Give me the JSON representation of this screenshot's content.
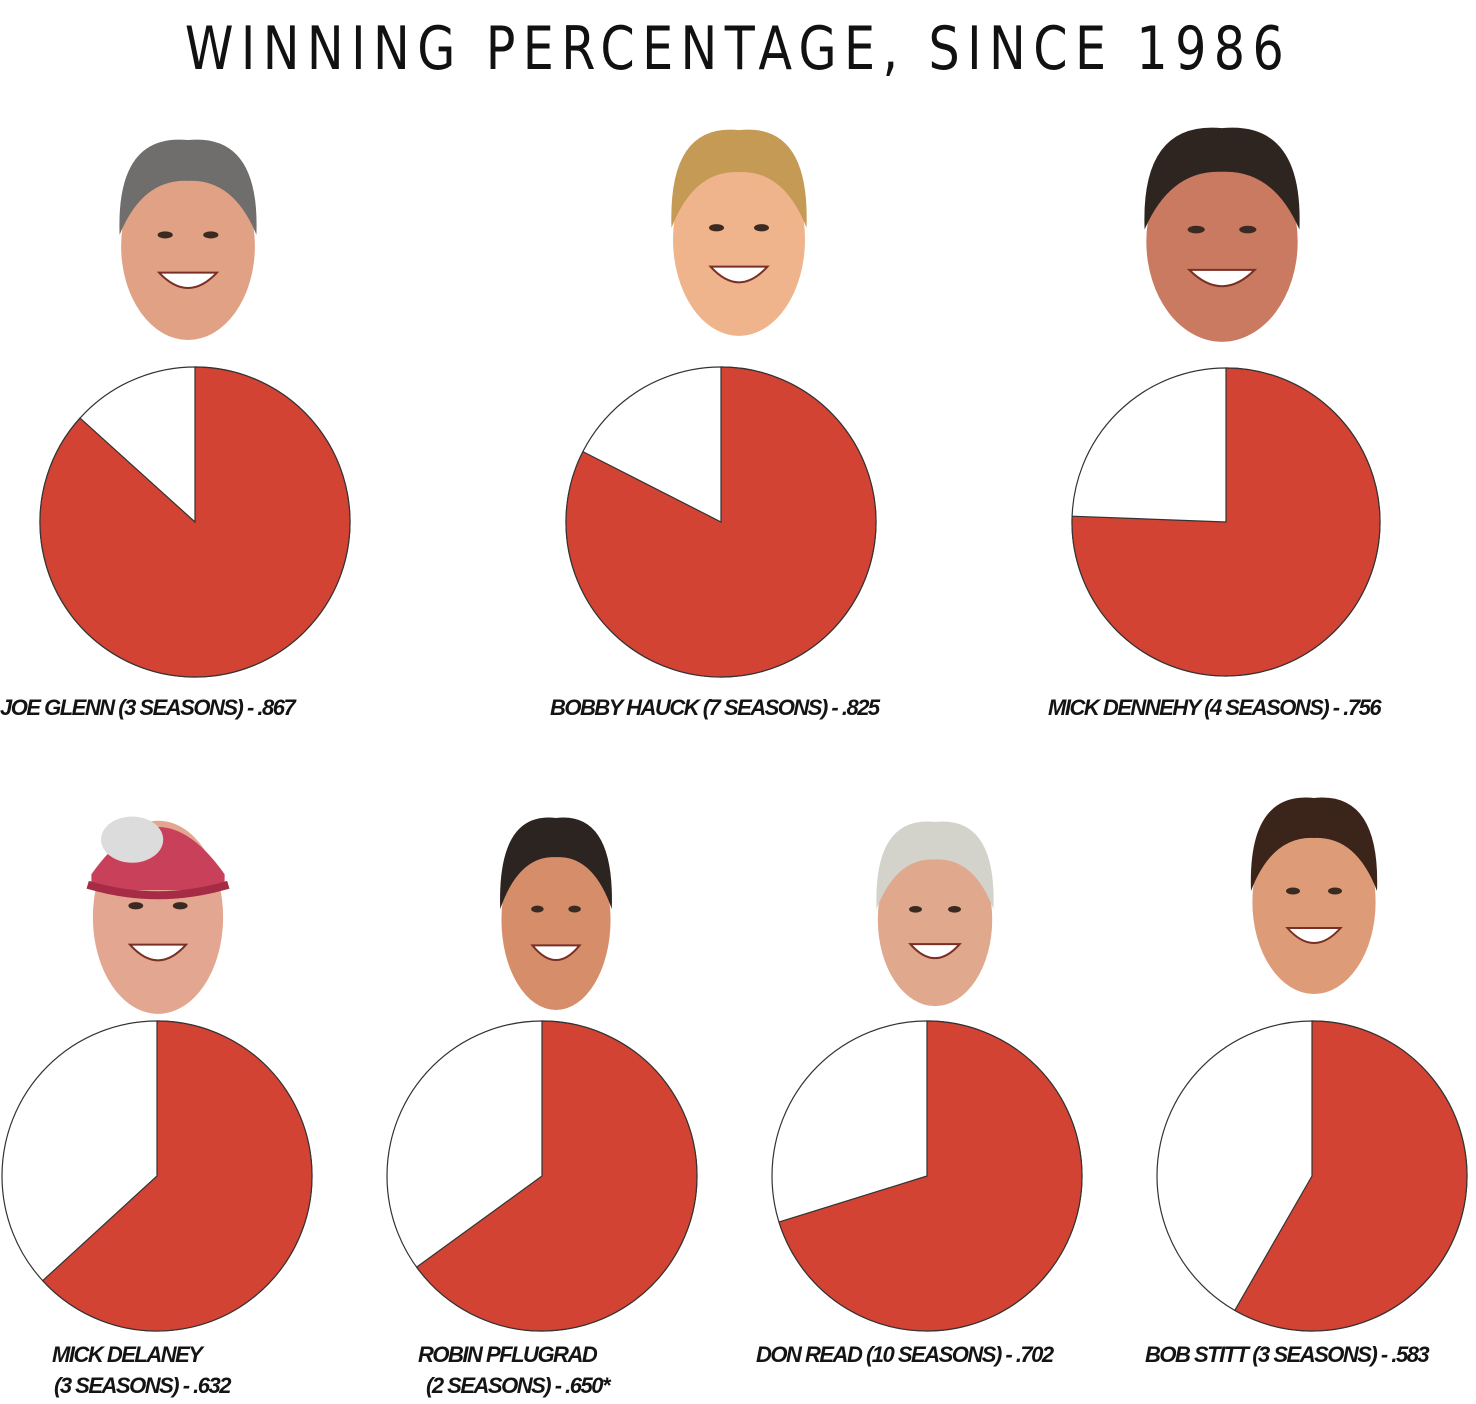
{
  "chart_data": {
    "type": "pie",
    "title": "WINNING PERCENTAGE, SINCE 1986",
    "colors": {
      "wins": "#d24333",
      "losses": "#ffffff",
      "outline": "#333333"
    },
    "coaches": [
      {
        "name": "JOE GLENN",
        "seasons_text": "(3 SEASONS)",
        "pct_text": ".867",
        "value": 0.867,
        "caption_lines": [
          "JOE GLENN (3 SEASONS) - .867"
        ],
        "icon": "coach-face-icon"
      },
      {
        "name": "BOBBY HAUCK",
        "seasons_text": "(7 SEASONS)",
        "pct_text": ".825",
        "value": 0.825,
        "caption_lines": [
          "BOBBY HAUCK (7 SEASONS) - .825"
        ],
        "icon": "coach-face-icon"
      },
      {
        "name": "MICK DENNEHY",
        "seasons_text": "(4 SEASONS)",
        "pct_text": ".756",
        "value": 0.756,
        "caption_lines": [
          "MICK DENNEHY (4 SEASONS) - .756"
        ],
        "icon": "coach-face-icon"
      },
      {
        "name": "MICK DELANEY",
        "seasons_text": "(3 SEASONS)",
        "pct_text": ".632",
        "value": 0.632,
        "caption_lines": [
          "MICK DELANEY",
          "(3 SEASONS) - .632"
        ],
        "icon": "coach-face-icon"
      },
      {
        "name": "ROBIN PFLUGRAD",
        "seasons_text": "(2 SEASONS)",
        "pct_text": ".650*",
        "value": 0.65,
        "caption_lines": [
          "ROBIN PFLUGRAD",
          "(2 SEASONS) - .650*"
        ],
        "icon": "coach-face-icon"
      },
      {
        "name": "DON READ",
        "seasons_text": "(10 SEASONS)",
        "pct_text": ".702",
        "value": 0.702,
        "caption_lines": [
          "DON READ (10 SEASONS) - .702"
        ],
        "icon": "coach-face-icon"
      },
      {
        "name": "BOB STITT",
        "seasons_text": "(3 SEASONS)",
        "pct_text": ".583",
        "value": 0.583,
        "caption_lines": [
          "BOB STITT (3 SEASONS) - .583"
        ],
        "icon": "coach-face-icon"
      }
    ]
  }
}
